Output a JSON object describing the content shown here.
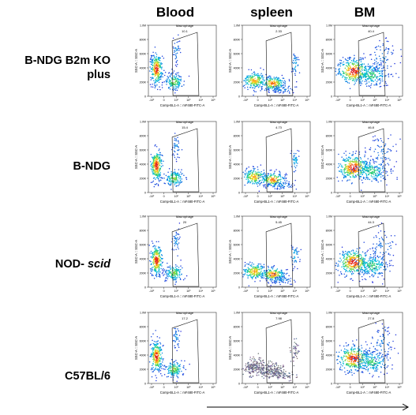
{
  "columns": [
    "Blood",
    "spleen",
    "BM"
  ],
  "rows": [
    {
      "label": "B-NDG B2m KO plus",
      "label_lines": [
        "B-NDG B2m KO",
        "plus"
      ],
      "label_italic": ""
    },
    {
      "label": "B-NDG",
      "label_lines": [
        "B-NDG"
      ],
      "label_italic": ""
    },
    {
      "label": "NOD- scid",
      "label_lines": [
        "NOD- "
      ],
      "label_italic": "scid"
    },
    {
      "label": "C57BL/6",
      "label_lines": [
        "C57BL/6"
      ],
      "label_italic": ""
    }
  ],
  "axis": {
    "ylabel": "SSC-A :: SSC-A",
    "xlabel": "Comp-BL1-A :: mF480-FITC-A",
    "yticks": [
      "1.0M",
      "800K",
      "600K",
      "400K",
      "200K",
      "0"
    ],
    "xticks": [
      "-10²",
      "0",
      "10²",
      "10³",
      "10⁴",
      "10⁵"
    ]
  },
  "gate_label": "Macrophage",
  "chart_data": {
    "type": "scatter",
    "subtype": "flow-cytometry-density",
    "xlabel": "Comp-BL1-A :: mF480-FITC-A",
    "ylabel": "SSC-A :: SSC-A",
    "y_range": [
      0,
      1000000
    ],
    "gate": "Macrophage",
    "categories_columns": [
      "Blood",
      "spleen",
      "BM"
    ],
    "categories_rows": [
      "B-NDG B2m KO plus",
      "B-NDG",
      "NOD- scid",
      "C57BL/6"
    ],
    "values": [
      [
        10.1,
        2.33,
        40.4
      ],
      [
        15.4,
        4.73,
        46.8
      ],
      [
        20.0,
        5.45,
        44.3
      ],
      [
        17.2,
        7.98,
        27.8
      ]
    ]
  }
}
